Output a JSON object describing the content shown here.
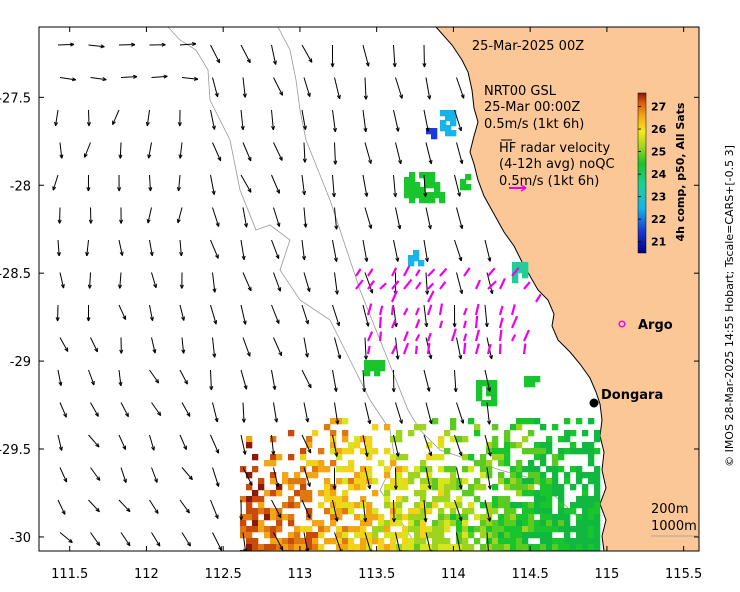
{
  "map": {
    "date_title": "25-Mar-2025 00Z",
    "model_label": {
      "line1": "NRT00 GSL",
      "line2": "25-Mar 00:00Z",
      "line3": "0.5m/s (1kt 6h)"
    },
    "hf_radar_label": {
      "line1": "HF radar velocity",
      "line2": "(4-12h avg) noQC",
      "line3": "0.5m/s (1kt 6h)"
    },
    "places": [
      {
        "name": "Argo",
        "lon": 115.07,
        "lat": -28.83
      },
      {
        "name": "Dongara",
        "lon": 114.93,
        "lat": -29.25
      }
    ],
    "isobath_labels": {
      "line1": "200m",
      "line2": "1000m"
    },
    "x_ticks": [
      "111.5",
      "112",
      "112.5",
      "113",
      "113.5",
      "114",
      "114.5",
      "115",
      "115.5"
    ],
    "y_ticks": [
      "-27.5",
      "-28",
      "-28.5",
      "-29",
      "-29.5",
      "-30"
    ],
    "colorbar": {
      "title": "4h comp, p50, All Sats",
      "ticks": [
        "27",
        "26",
        "25",
        "24",
        "23",
        "22",
        "21"
      ],
      "min": 20.5,
      "max": 27.6
    },
    "credit": "© IMOS 28-Mar-2025 14:55 Hobart; Tscale=CARS+[-0.5 3]",
    "colors": {
      "land": "#fbc797",
      "coast": "#000000",
      "radar_vectors": "#ee00ee",
      "argo": "#ee00ee"
    },
    "extent": {
      "lon_min": 111.3,
      "lon_max": 115.6,
      "lat_min": -30.08,
      "lat_max": -27.1
    }
  }
}
